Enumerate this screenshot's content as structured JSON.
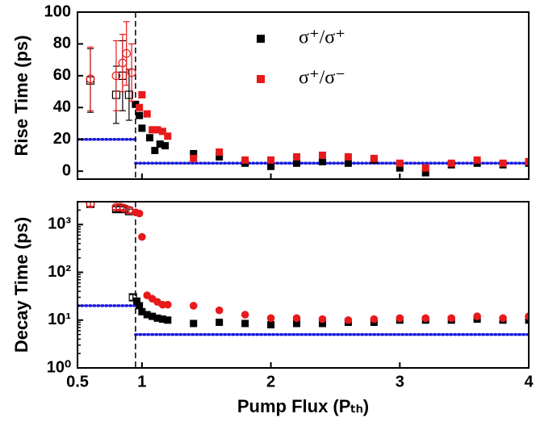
{
  "chart_data": [
    {
      "type": "scatter",
      "ylabel": "Rise Time (ps)",
      "xlim": [
        0.5,
        4
      ],
      "xticks": [
        0.5,
        1,
        2,
        3,
        4
      ],
      "ylim": [
        -5,
        100
      ],
      "yticks": [
        0,
        20,
        40,
        60,
        80,
        100
      ],
      "vline": 0.95,
      "hlines": [
        {
          "y": 20,
          "x": [
            0.5,
            0.95
          ]
        },
        {
          "y": 5,
          "x": [
            0.95,
            4
          ]
        }
      ],
      "hline_color": "#1a1adb",
      "legend": "top",
      "series": [
        {
          "name": "σ⁺/σ⁺",
          "color": "#000000",
          "marker": "square",
          "x": [
            0.6,
            0.8,
            0.85,
            0.9,
            0.95,
            0.98,
            1.0,
            1.06,
            1.1,
            1.14,
            1.18,
            1.4,
            1.6,
            1.8,
            2.0,
            2.2,
            2.4,
            2.6,
            2.8,
            3.0,
            3.2,
            3.4,
            3.6,
            3.8,
            4.0
          ],
          "values": [
            57,
            48,
            60,
            48,
            42,
            35,
            27,
            21,
            13,
            17,
            16,
            11,
            9,
            5,
            3,
            5,
            6,
            5,
            7,
            2,
            -1,
            4,
            5,
            4,
            5
          ],
          "errors": [
            20,
            18,
            22,
            16,
            null,
            null,
            null,
            null,
            null,
            null,
            null,
            null,
            null,
            null,
            null,
            null,
            null,
            null,
            null,
            null,
            null,
            null,
            null,
            null,
            null
          ]
        },
        {
          "name": "σ⁺/σ⁻",
          "color": "#e8191b",
          "marker": "square",
          "x": [
            0.6,
            0.8,
            0.85,
            0.88,
            0.92,
            0.98,
            1.0,
            1.04,
            1.08,
            1.12,
            1.16,
            1.2,
            1.4,
            1.6,
            1.8,
            2.0,
            2.2,
            2.4,
            2.6,
            2.8,
            3.0,
            3.2,
            3.4,
            3.6,
            3.8,
            4.0
          ],
          "values": [
            58,
            60,
            68,
            74,
            62,
            40,
            48,
            36,
            26,
            26,
            25,
            22,
            8,
            12,
            7,
            7,
            9,
            10,
            9,
            8,
            5,
            2,
            5,
            7,
            5,
            6
          ],
          "errors": [
            20,
            22,
            18,
            20,
            18,
            null,
            null,
            null,
            null,
            null,
            null,
            null,
            null,
            null,
            null,
            null,
            null,
            null,
            null,
            null,
            null,
            null,
            null,
            null,
            null,
            null
          ]
        }
      ]
    },
    {
      "type": "scatter",
      "ylabel": "Decay Time (ps)",
      "xlabel": "Pump Flux (Pₜₕ)",
      "xlim": [
        0.5,
        4
      ],
      "xticks": [
        0.5,
        1,
        2,
        3,
        4
      ],
      "ylim": [
        1,
        3000
      ],
      "log_y": true,
      "yticks": [
        {
          "value": 1,
          "label": "10⁰"
        },
        {
          "value": 10,
          "label": "10¹"
        },
        {
          "value": 100,
          "label": "10²"
        },
        {
          "value": 1000,
          "label": "10³"
        }
      ],
      "vline": 0.95,
      "hlines": [
        {
          "y": 20,
          "x": [
            0.5,
            0.95
          ]
        },
        {
          "y": 5,
          "x": [
            0.95,
            4
          ]
        }
      ],
      "hline_color": "#1a1adb",
      "series": [
        {
          "color": "#000000",
          "marker": "square",
          "x": [
            0.6,
            0.8,
            0.83,
            0.86,
            0.9,
            0.93,
            0.96,
            0.98,
            1.0,
            1.04,
            1.08,
            1.12,
            1.16,
            1.2,
            1.4,
            1.6,
            1.8,
            2.0,
            2.2,
            2.4,
            2.6,
            2.8,
            3.0,
            3.2,
            3.4,
            3.6,
            3.8,
            4.0
          ],
          "values": [
            2700,
            2100,
            2200,
            2100,
            1900,
            30,
            25,
            20,
            15,
            13,
            12,
            11,
            10.5,
            10,
            8.5,
            9,
            8.5,
            8,
            8.5,
            8.5,
            9,
            9,
            10,
            10,
            10,
            10.5,
            10,
            10
          ],
          "errors": [
            300,
            250,
            250,
            250,
            200,
            4,
            null,
            null,
            null,
            null,
            null,
            null,
            null,
            null,
            null,
            null,
            null,
            null,
            null,
            null,
            null,
            null,
            null,
            null,
            null,
            null,
            null,
            null
          ]
        },
        {
          "color": "#e8191b",
          "marker": "circle",
          "x": [
            0.6,
            0.8,
            0.83,
            0.86,
            0.9,
            0.95,
            0.98,
            1.0,
            1.04,
            1.08,
            1.12,
            1.16,
            1.2,
            1.4,
            1.6,
            1.8,
            2.0,
            2.2,
            2.4,
            2.6,
            2.8,
            3.0,
            3.2,
            3.4,
            3.6,
            3.8,
            4.0
          ],
          "values": [
            2700,
            2300,
            2300,
            2200,
            2000,
            1800,
            1700,
            550,
            33,
            28,
            24,
            21,
            21,
            20,
            16,
            13,
            11,
            11,
            10.5,
            10,
            10.5,
            11,
            11,
            11,
            12,
            11,
            12
          ],
          "errors": [
            300,
            250,
            250,
            250,
            250,
            null,
            null,
            null,
            null,
            null,
            null,
            null,
            null,
            null,
            null,
            null,
            null,
            null,
            null,
            null,
            null,
            null,
            null,
            null,
            null,
            null,
            null
          ]
        }
      ]
    }
  ]
}
